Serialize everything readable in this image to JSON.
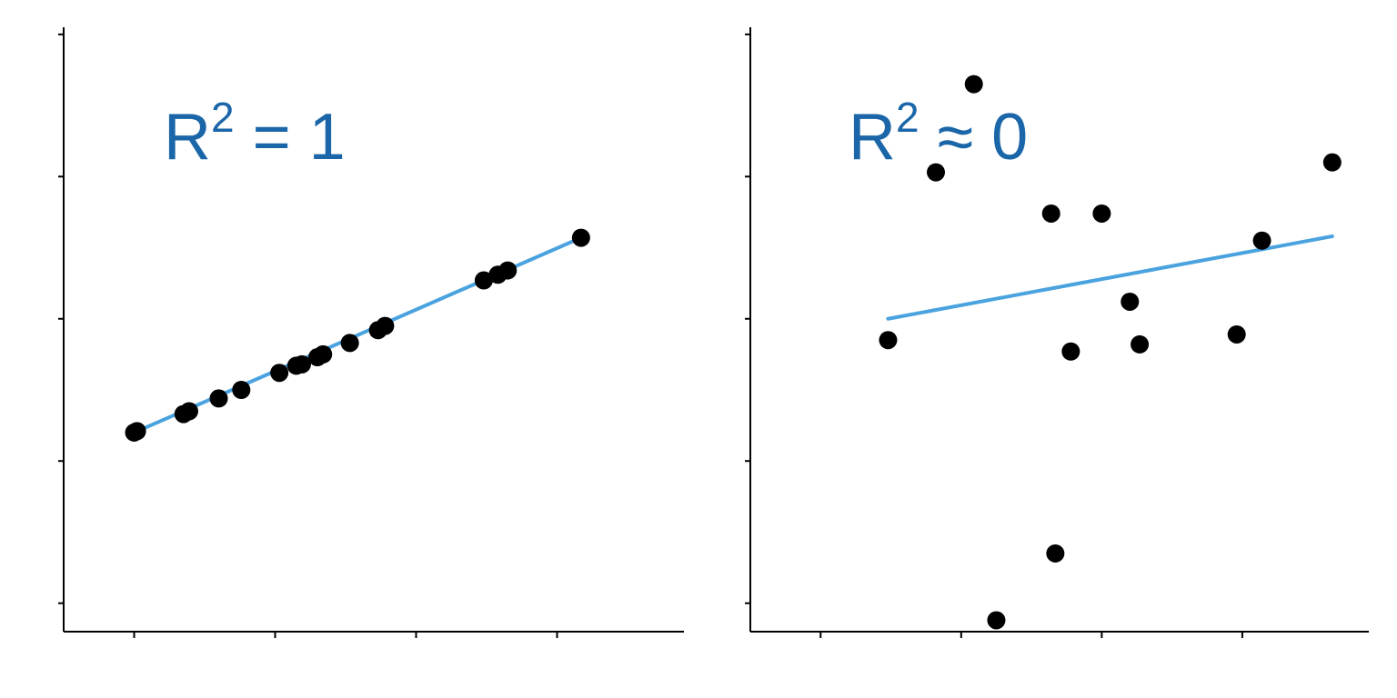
{
  "colors": {
    "point": "#000000",
    "fit_line": "#4aa3df",
    "annotation": "#1a66a8",
    "axis": "#000000"
  },
  "chart_data": [
    {
      "type": "scatter",
      "title": "",
      "xlabel": "",
      "ylabel": "",
      "xlim": [
        0.5,
        4.9
      ],
      "ylim": [
        0.3,
        4.55
      ],
      "grid": false,
      "annotation": {
        "base": "R",
        "sup": "2",
        "rel": "=",
        "value": "1"
      },
      "points": [
        {
          "x": 1.0,
          "y": 1.7
        },
        {
          "x": 1.02,
          "y": 1.71
        },
        {
          "x": 1.35,
          "y": 1.83
        },
        {
          "x": 1.39,
          "y": 1.85
        },
        {
          "x": 1.6,
          "y": 1.94
        },
        {
          "x": 1.76,
          "y": 2.0
        },
        {
          "x": 2.03,
          "y": 2.12
        },
        {
          "x": 2.15,
          "y": 2.17
        },
        {
          "x": 2.19,
          "y": 2.18
        },
        {
          "x": 2.3,
          "y": 2.23
        },
        {
          "x": 2.34,
          "y": 2.25
        },
        {
          "x": 2.53,
          "y": 2.33
        },
        {
          "x": 2.73,
          "y": 2.42
        },
        {
          "x": 2.78,
          "y": 2.45
        },
        {
          "x": 3.48,
          "y": 2.77
        },
        {
          "x": 3.58,
          "y": 2.81
        },
        {
          "x": 3.65,
          "y": 2.84
        },
        {
          "x": 4.17,
          "y": 3.07
        }
      ],
      "fit": {
        "x1": 1.0,
        "y1": 1.7,
        "x2": 4.17,
        "y2": 3.07
      }
    },
    {
      "type": "scatter",
      "title": "",
      "xlabel": "",
      "ylabel": "",
      "xlim": [
        0.5,
        4.9
      ],
      "ylim": [
        0.3,
        4.55
      ],
      "grid": false,
      "annotation": {
        "base": "R",
        "sup": "2",
        "rel": "≈",
        "value": "0"
      },
      "points": [
        {
          "x": 1.48,
          "y": 2.35
        },
        {
          "x": 1.82,
          "y": 3.53
        },
        {
          "x": 2.09,
          "y": 4.15
        },
        {
          "x": 2.25,
          "y": 0.38
        },
        {
          "x": 2.64,
          "y": 3.24
        },
        {
          "x": 2.67,
          "y": 0.85
        },
        {
          "x": 2.78,
          "y": 2.27
        },
        {
          "x": 3.0,
          "y": 3.24
        },
        {
          "x": 3.2,
          "y": 2.62
        },
        {
          "x": 3.27,
          "y": 2.32
        },
        {
          "x": 3.96,
          "y": 2.39
        },
        {
          "x": 4.14,
          "y": 3.05
        },
        {
          "x": 4.64,
          "y": 3.6
        }
      ],
      "fit": {
        "x1": 1.48,
        "y1": 2.5,
        "x2": 4.64,
        "y2": 3.08
      }
    }
  ]
}
